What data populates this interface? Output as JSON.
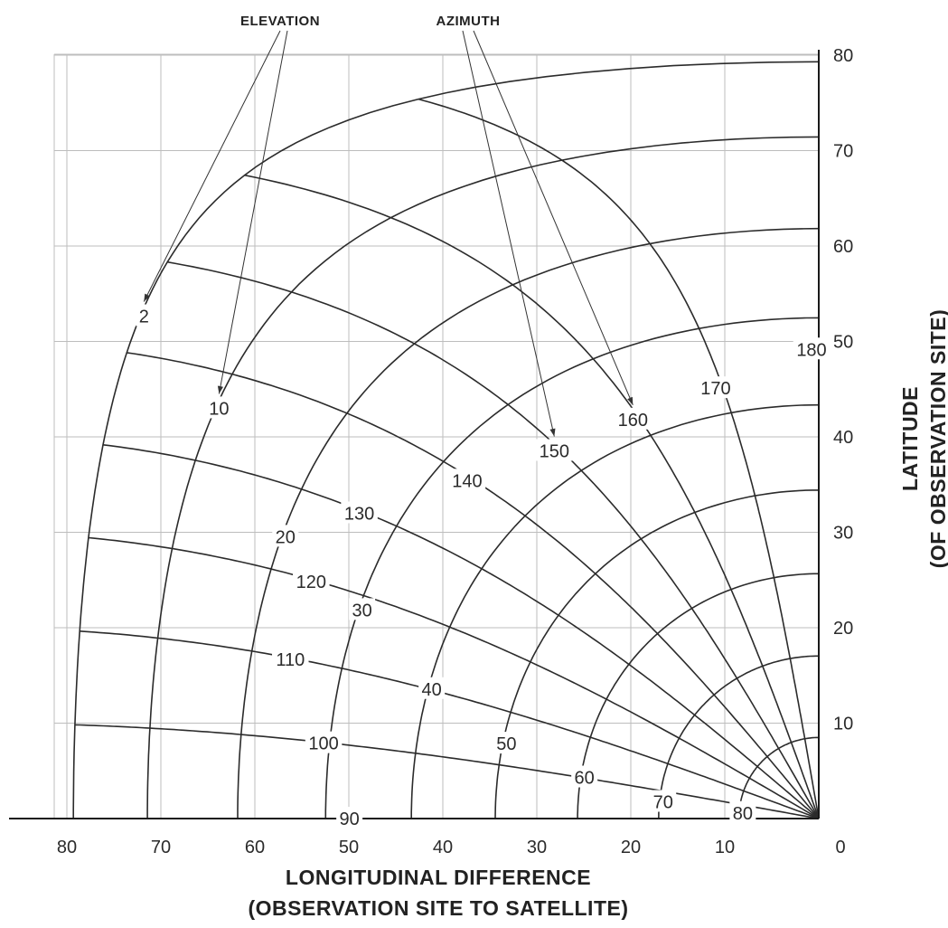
{
  "chart_data": {
    "type": "line",
    "title": "",
    "xlabel": "LONGITUDINAL DIFFERENCE",
    "xlabel_line2": "(OBSERVATION SITE TO SATELLITE)",
    "ylabel": "LATITUDE",
    "ylabel_line2": "(OF OBSERVATION SITE)",
    "x_reversed": true,
    "xlim": [
      0,
      80
    ],
    "ylim": [
      0,
      80
    ],
    "x_ticks": [
      "80",
      "70",
      "60",
      "50",
      "40",
      "30",
      "20",
      "10",
      "0"
    ],
    "y_ticks": [
      "10",
      "20",
      "30",
      "40",
      "50",
      "60",
      "70",
      "80"
    ],
    "grid": true,
    "elevation_label": "ELEVATION",
    "azimuth_label": "AZIMUTH",
    "elevation_curves": [
      {
        "label": "2",
        "value": 2
      },
      {
        "label": "10",
        "value": 10
      },
      {
        "label": "20",
        "value": 20
      },
      {
        "label": "30",
        "value": 30
      },
      {
        "label": "40",
        "value": 40
      },
      {
        "label": "50",
        "value": 50
      },
      {
        "label": "60",
        "value": 60
      },
      {
        "label": "70",
        "value": 70
      },
      {
        "label": "80",
        "value": 80
      }
    ],
    "azimuth_curves": [
      {
        "label": "90",
        "value": 90
      },
      {
        "label": "100",
        "value": 100
      },
      {
        "label": "110",
        "value": 110
      },
      {
        "label": "120",
        "value": 120
      },
      {
        "label": "130",
        "value": 130
      },
      {
        "label": "140",
        "value": 140
      },
      {
        "label": "150",
        "value": 150
      },
      {
        "label": "160",
        "value": 160
      },
      {
        "label": "170",
        "value": 170
      },
      {
        "label": "180",
        "value": 180
      }
    ]
  }
}
